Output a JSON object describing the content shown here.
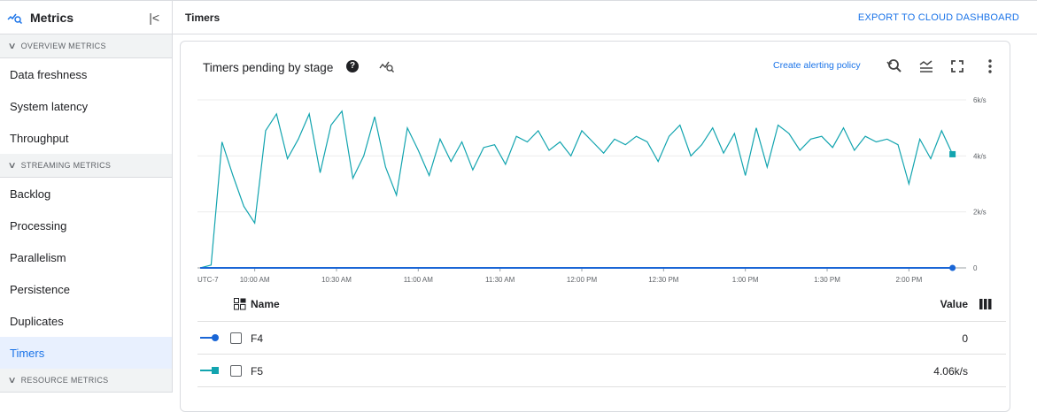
{
  "sidebar": {
    "title": "Metrics",
    "collapse_icon": "collapse-left-icon",
    "sections": [
      {
        "label": "OVERVIEW METRICS",
        "items": [
          "Data freshness",
          "System latency",
          "Throughput"
        ]
      },
      {
        "label": "STREAMING METRICS",
        "items": [
          "Backlog",
          "Processing",
          "Parallelism",
          "Persistence",
          "Duplicates",
          "Timers"
        ]
      },
      {
        "label": "RESOURCE METRICS",
        "items": []
      }
    ],
    "selected": "Timers"
  },
  "header": {
    "title": "Timers",
    "export_label": "EXPORT TO CLOUD DASHBOARD"
  },
  "card": {
    "title": "Timers pending by stage",
    "help_icon": "help-icon",
    "explore_icon": "explore-metrics-icon",
    "alert_link": "Create alerting policy",
    "tools": [
      "reset-zoom-icon",
      "legend-toggle-icon",
      "fullscreen-icon",
      "more-vert-icon"
    ]
  },
  "table": {
    "headers": {
      "name": "Name",
      "value": "Value"
    },
    "rows": [
      {
        "name": "F4",
        "value": "0",
        "color": "#1a66d6",
        "marker": "circle"
      },
      {
        "name": "F5",
        "value": "4.06k/s",
        "color": "#12a4af",
        "marker": "square"
      }
    ]
  },
  "colors": {
    "accent": "#1a73e8",
    "f4": "#1a66d6",
    "f5": "#12a4af"
  },
  "chart_data": {
    "type": "line",
    "title": "Timers pending by stage",
    "timezone_label": "UTC-7",
    "x_ticks": [
      "10:00 AM",
      "10:30 AM",
      "11:00 AM",
      "11:30 AM",
      "12:00 PM",
      "12:30 PM",
      "1:00 PM",
      "1:30 PM",
      "2:00 PM"
    ],
    "x_tick_times": [
      "10:00",
      "10:30",
      "11:00",
      "11:30",
      "12:00",
      "12:30",
      "13:00",
      "13:30",
      "14:00"
    ],
    "y_ticks": [
      "0",
      "2k/s",
      "4k/s",
      "6k/s"
    ],
    "y_tick_values": [
      0,
      2,
      4,
      6
    ],
    "ylim": [
      0,
      6
    ],
    "y_unit": "k/s",
    "y_axis": "right",
    "grid": true,
    "x": [
      "09:40",
      "09:44",
      "09:48",
      "09:52",
      "09:56",
      "10:00",
      "10:04",
      "10:08",
      "10:12",
      "10:16",
      "10:20",
      "10:24",
      "10:28",
      "10:32",
      "10:36",
      "10:40",
      "10:44",
      "10:48",
      "10:52",
      "10:56",
      "11:00",
      "11:04",
      "11:08",
      "11:12",
      "11:16",
      "11:20",
      "11:24",
      "11:28",
      "11:32",
      "11:36",
      "11:40",
      "11:44",
      "11:48",
      "11:52",
      "11:56",
      "12:00",
      "12:04",
      "12:08",
      "12:12",
      "12:16",
      "12:20",
      "12:24",
      "12:28",
      "12:32",
      "12:36",
      "12:40",
      "12:44",
      "12:48",
      "12:52",
      "12:56",
      "13:00",
      "13:04",
      "13:08",
      "13:12",
      "13:16",
      "13:20",
      "13:24",
      "13:28",
      "13:32",
      "13:36",
      "13:40",
      "13:44",
      "13:48",
      "13:52",
      "13:56",
      "14:00",
      "14:04",
      "14:08",
      "14:12",
      "14:16"
    ],
    "series": [
      {
        "name": "F4",
        "values": [
          0,
          0,
          0,
          0,
          0,
          0,
          0,
          0,
          0,
          0,
          0,
          0,
          0,
          0,
          0,
          0,
          0,
          0,
          0,
          0,
          0,
          0,
          0,
          0,
          0,
          0,
          0,
          0,
          0,
          0,
          0,
          0,
          0,
          0,
          0,
          0,
          0,
          0,
          0,
          0,
          0,
          0,
          0,
          0,
          0,
          0,
          0,
          0,
          0,
          0,
          0,
          0,
          0,
          0,
          0,
          0,
          0,
          0,
          0,
          0,
          0,
          0,
          0,
          0,
          0,
          0,
          0,
          0,
          0,
          0
        ]
      },
      {
        "name": "F5",
        "values": [
          0,
          0.1,
          4.5,
          3.3,
          2.2,
          1.6,
          4.9,
          5.5,
          3.9,
          4.6,
          5.5,
          3.4,
          5.1,
          5.6,
          3.2,
          4.0,
          5.4,
          3.6,
          2.6,
          5.0,
          4.2,
          3.3,
          4.6,
          3.8,
          4.5,
          3.5,
          4.3,
          4.4,
          3.7,
          4.7,
          4.5,
          4.9,
          4.2,
          4.5,
          4.0,
          4.9,
          4.5,
          4.1,
          4.6,
          4.4,
          4.7,
          4.5,
          3.8,
          4.7,
          5.1,
          4.0,
          4.4,
          5.0,
          4.1,
          4.8,
          3.3,
          5.0,
          3.6,
          5.1,
          4.8,
          4.2,
          4.6,
          4.7,
          4.3,
          5.0,
          4.2,
          4.7,
          4.5,
          4.6,
          4.4,
          3.0,
          4.6,
          3.9,
          4.9,
          4.06
        ]
      }
    ]
  }
}
